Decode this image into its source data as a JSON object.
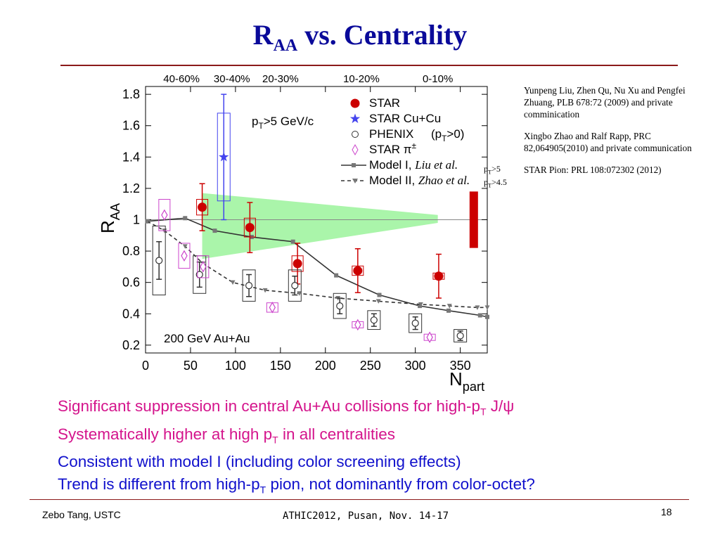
{
  "slide": {
    "title_main": "R",
    "title_sub": "AA",
    "title_rest": " vs. Centrality"
  },
  "references": [
    "Yunpeng Liu, Zhen Qu, Nu Xu and Pengfei Zhuang, PLB 678:72 (2009) and private comminication",
    "Xingbo Zhao and Ralf Rapp, PRC 82,064905(2010) and private communication",
    "STAR Pion: PRL 108:072302 (2012)"
  ],
  "bullets": {
    "b1_pre": "Significant suppression in central Au+Au collisions for high-p",
    "b1_sub": "T",
    "b1_post": " J/ψ",
    "b2_pre": "Systematically higher at high p",
    "b2_sub": "T",
    "b2_post": " in all centralities",
    "b3": "Consistent with model I (including color screening effects)",
    "b4_pre": "Trend is different from high-p",
    "b4_sub": "T",
    "b4_post": " pion, not dominantly from color-octet?"
  },
  "footer": {
    "author": "Zebo Tang, USTC",
    "conference": "ATHIC2012, Pusan, Nov. 14-17",
    "page": "18"
  },
  "chart_data": {
    "type": "scatter",
    "xlabel": "N",
    "xlabel_sub": "part",
    "ylabel": "R",
    "ylabel_sub": "AA",
    "xlim": [
      0,
      380
    ],
    "ylim": [
      0.15,
      1.85
    ],
    "x_ticks": [
      0,
      50,
      100,
      150,
      200,
      250,
      300,
      350
    ],
    "y_ticks": [
      0.2,
      0.4,
      0.6,
      0.8,
      1.0,
      1.2,
      1.4,
      1.6,
      1.8
    ],
    "y_tick_labels": [
      "0.2",
      "0.4",
      "0.6",
      "0.8",
      "1",
      "1.2",
      "1.4",
      "1.6",
      "1.8"
    ],
    "top_axis": [
      {
        "label": "40-60%",
        "x": 40
      },
      {
        "label": "30-40%",
        "x": 96
      },
      {
        "label": "20-30%",
        "x": 150
      },
      {
        "label": "10-20%",
        "x": 240
      },
      {
        "label": "0-10%",
        "x": 325
      }
    ],
    "annotations": {
      "pt_cut": "p",
      "pt_cut_sub": "T",
      "pt_cut_rest": ">5 GeV/c",
      "system": "200 GeV Au+Au",
      "model1_pt": ">5",
      "model2_pt": ">4.5",
      "pt_prefix": "p",
      "pt_prefix_sub": "T"
    },
    "legend": {
      "star": "STAR",
      "star_cucu": "STAR Cu+Cu",
      "phenix": "PHENIX",
      "phenix_note_pre": "(p",
      "phenix_note_sub": "T",
      "phenix_note_post": ">0)",
      "star_pion": "STAR π",
      "star_pion_sup": "±",
      "model1": "Model I, ",
      "model1_ref": "Liu et al.",
      "model2": "Model II, ",
      "model2_ref": "Zhao et al."
    },
    "series": [
      {
        "name": "STAR",
        "color": "#cc0000",
        "points": [
          {
            "x": 63,
            "y": 1.08,
            "err": 0.15,
            "sys": 0.05
          },
          {
            "x": 116,
            "y": 0.95,
            "err": 0.16,
            "sys": 0.06
          },
          {
            "x": 169,
            "y": 0.72,
            "err": 0.13,
            "sys": 0.05
          },
          {
            "x": 236,
            "y": 0.675,
            "err": 0.14,
            "sys": 0.03
          },
          {
            "x": 326,
            "y": 0.64,
            "err": 0.14,
            "sys": 0.02
          }
        ]
      },
      {
        "name": "STAR Cu+Cu",
        "color": "#4444ee",
        "points": [
          {
            "x": 87,
            "y": 1.4,
            "err": 0.4,
            "sys": 0.28
          }
        ]
      },
      {
        "name": "PHENIX",
        "color": "#333333",
        "points": [
          {
            "x": 15,
            "y": 0.74,
            "err": 0.12,
            "sys": 0.22
          },
          {
            "x": 60,
            "y": 0.65,
            "err": 0.08,
            "sys": 0.12
          },
          {
            "x": 115,
            "y": 0.58,
            "err": 0.07,
            "sys": 0.1
          },
          {
            "x": 166,
            "y": 0.58,
            "err": 0.06,
            "sys": 0.1
          },
          {
            "x": 216,
            "y": 0.45,
            "err": 0.05,
            "sys": 0.08
          },
          {
            "x": 254,
            "y": 0.36,
            "err": 0.04,
            "sys": 0.06
          },
          {
            "x": 300,
            "y": 0.34,
            "err": 0.04,
            "sys": 0.06
          },
          {
            "x": 350,
            "y": 0.26,
            "err": 0.03,
            "sys": 0.04
          }
        ]
      },
      {
        "name": "STAR π±",
        "color": "#cc44cc",
        "points": [
          {
            "x": 21,
            "y": 1.03,
            "sys": 0.1
          },
          {
            "x": 43,
            "y": 0.77,
            "sys": 0.08
          },
          {
            "x": 64,
            "y": 0.7,
            "sys": 0.07
          },
          {
            "x": 141,
            "y": 0.44,
            "sys": 0.03
          },
          {
            "x": 236,
            "y": 0.33,
            "sys": 0.02
          },
          {
            "x": 316,
            "y": 0.25,
            "sys": 0.02
          }
        ]
      }
    ],
    "model_curves": [
      {
        "name": "Model I, Liu et al.",
        "color": "#333333",
        "style": "solid",
        "x": [
          2,
          44,
          77,
          118,
          164,
          212,
          260,
          305,
          337,
          372,
          380
        ],
        "y": [
          0.99,
          1.01,
          0.93,
          0.89,
          0.86,
          0.645,
          0.52,
          0.45,
          0.42,
          0.39,
          0.38
        ]
      },
      {
        "name": "Model II, Zhao et al.",
        "color": "#333333",
        "style": "dashed",
        "x": [
          2,
          21,
          44,
          64,
          97,
          133,
          171,
          214,
          259,
          306,
          338,
          369,
          380
        ],
        "y": [
          0.99,
          0.93,
          0.83,
          0.72,
          0.6,
          0.55,
          0.53,
          0.5,
          0.48,
          0.46,
          0.45,
          0.44,
          0.44
        ]
      }
    ],
    "band": {
      "x": [
        63,
        325
      ],
      "upper": [
        1.17,
        1.03
      ],
      "lower": [
        0.75,
        0.98
      ],
      "color": "#aaf5aa"
    },
    "norm_box": {
      "x": 365,
      "y": 1.0,
      "half_height": 0.18,
      "color": "#cc0000"
    },
    "reference_line": 1.0
  }
}
